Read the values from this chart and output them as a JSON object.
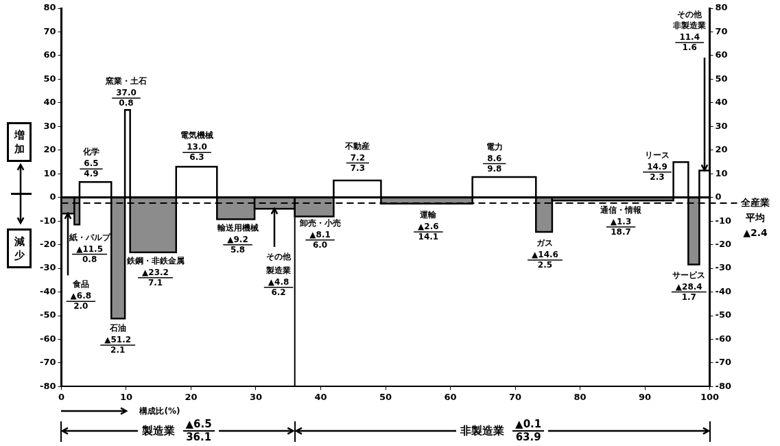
{
  "chart_data": {
    "type": "histogram",
    "bins": [
      0,
      2.0,
      2.8,
      7.7,
      9.8,
      10.6,
      17.7,
      24.0,
      29.8,
      36.0,
      42.0,
      49.3,
      63.4,
      73.2,
      75.7,
      94.4,
      96.7,
      98.4,
      100.0
    ],
    "values": [
      -6.8,
      -11.5,
      6.5,
      -51.2,
      37.0,
      -23.2,
      13.0,
      -9.2,
      -4.8,
      -8.1,
      7.2,
      -2.6,
      8.6,
      -14.6,
      -1.3,
      14.9,
      -28.4,
      11.4
    ],
    "colors": [
      "#8c8c8c",
      "#8c8c8c",
      "#ffffff",
      "#8c8c8c",
      "#ffffff",
      "#8c8c8c",
      "#ffffff",
      "#8c8c8c",
      "#8c8c8c",
      "#8c8c8c",
      "#ffffff",
      "#8c8c8c",
      "#ffffff",
      "#8c8c8c",
      "#8c8c8c",
      "#ffffff",
      "#8c8c8c",
      "#ffffff"
    ],
    "xlabel": "構成比(%)",
    "xlim": [
      0,
      100
    ],
    "xticks": [
      0,
      10,
      20,
      30,
      40,
      50,
      60,
      70,
      80,
      90,
      100
    ],
    "ylim": [
      -80,
      80
    ],
    "yticks": [
      -80,
      -70,
      -60,
      -50,
      -40,
      -30,
      -20,
      -10,
      0,
      10,
      20,
      30,
      40,
      50,
      60,
      70,
      80
    ],
    "y2lim": [
      -80,
      80
    ],
    "y2ticks": [
      -80,
      -70,
      -60,
      -50,
      -40,
      -30,
      -20,
      -10,
      0,
      10,
      20,
      30,
      40,
      50,
      60,
      70,
      80
    ],
    "ref_lines": [
      {
        "axis": "y",
        "value": -2.4,
        "label": "全産業平均\n▲2.4",
        "line_style": "dashed",
        "color": "#000000"
      },
      {
        "axis": "x",
        "value": 36.0,
        "color": "#000000"
      }
    ],
    "annotations": [
      {
        "text": "食品\n▲6.8\n2.0",
        "x": 1.0,
        "y": -6.8
      },
      "紙・パルプ\n▲11.5\n0.8",
      "化学\n6.5\n4.9",
      "石油\n▲51.2\n2.1",
      "窯業・土石\n37.0\n0.8",
      "鉄鋼・非鉄金属\n▲23.2\n7.1",
      "電気機械\n13.0\n6.3",
      "輸送用機械\n▲9.2\n5.8",
      {
        "text": "その他",
        "x": 32.9,
        "y": -4.8
      },
      "製造業\n▲4.8\n6.2",
      "卸売・小売\n▲8.1\n6.0",
      "不動産\n7.2\n7.3",
      "運輸\n▲2.6\n14.1",
      "電力\n8.6\n9.8",
      "ガス\n▲14.6\n2.5",
      "通信・情報\n▲1.3\n18.7",
      "リース\n14.9\n2.3",
      "サービス\n▲28.4\n1.7",
      "その他",
      {
        "text": "非製造業\n11.4\n1.6",
        "x": 99.2,
        "y": 11.4
      },
      "増加",
      "減少",
      "製造業\n▲6.5\n36.1",
      "非製造業\n▲0.1\n63.9"
    ]
  }
}
